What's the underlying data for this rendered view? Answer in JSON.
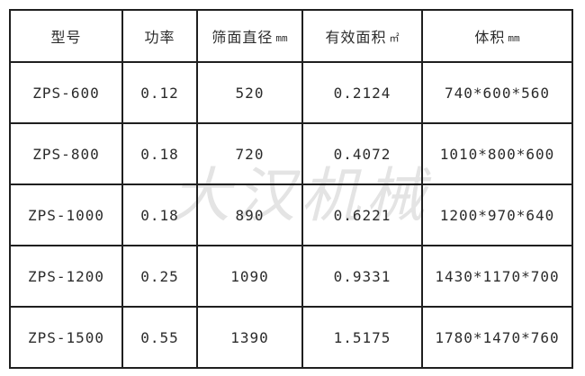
{
  "colors": {
    "border": "#1f1f1f",
    "text": "#2b2b2b",
    "watermark": "#e4e4e4",
    "background": "#ffffff"
  },
  "watermark": {
    "text": "大汉机械"
  },
  "table": {
    "columns": [
      {
        "label": "型号",
        "unit": ""
      },
      {
        "label": "功率",
        "unit": ""
      },
      {
        "label": "筛面直径",
        "unit": "mm"
      },
      {
        "label": "有效面积",
        "unit": "㎡"
      },
      {
        "label": "体积",
        "unit": "mm"
      }
    ],
    "rows": [
      [
        "ZPS-600",
        "0.12",
        "520",
        "0.2124",
        "740*600*560"
      ],
      [
        "ZPS-800",
        "0.18",
        "720",
        "0.4072",
        "1010*800*600"
      ],
      [
        "ZPS-1000",
        "0.18",
        "890",
        "0.6221",
        "1200*970*640"
      ],
      [
        "ZPS-1200",
        "0.25",
        "1090",
        "0.9331",
        "1430*1170*700"
      ],
      [
        "ZPS-1500",
        "0.55",
        "1390",
        "1.5175",
        "1780*1470*760"
      ]
    ]
  }
}
